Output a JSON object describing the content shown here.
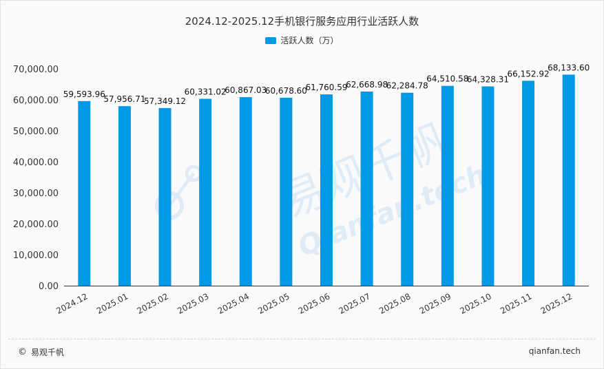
{
  "colors": {
    "bar": "#0099e6",
    "axis": "#333333",
    "tick_text": "#333333",
    "label_text": "#111111",
    "watermark": "#c9e2f5"
  },
  "chart_data": {
    "type": "bar",
    "title": "2024.12-2025.12手机银行服务应用行业活跃人数",
    "legend": {
      "label": "活跃人数（万）",
      "position": "top-center"
    },
    "categories": [
      "2024.12",
      "2025.01",
      "2025.02",
      "2025.03",
      "2025.04",
      "2025.05",
      "2025.06",
      "2025.07",
      "2025.08",
      "2025.09",
      "2025.10",
      "2025.11",
      "2025.12"
    ],
    "series": [
      {
        "name": "活跃人数（万）",
        "values": [
          59593.96,
          57956.71,
          57349.12,
          60331.02,
          60867.03,
          60678.6,
          61760.59,
          62668.98,
          62284.78,
          64510.58,
          64328.31,
          66152.92,
          68133.6
        ]
      }
    ],
    "data_labels": [
      "59,593.96",
      "57,956.71",
      "57,349.12",
      "60,331.02",
      "60,867.03",
      "60,678.60",
      "61,760.59",
      "62,668.98",
      "62,284.78",
      "64,510.58",
      "64,328.31",
      "66,152.92",
      "68,133.60"
    ],
    "yticks": [
      0,
      10000,
      20000,
      30000,
      40000,
      50000,
      60000,
      70000
    ],
    "ytick_labels": [
      "0.00",
      "10,000.00",
      "20,000.00",
      "30,000.00",
      "40,000.00",
      "50,000.00",
      "60,000.00",
      "70,000.00"
    ],
    "ylim": [
      0,
      70000
    ],
    "xlabel": "",
    "ylabel": "",
    "grid": false
  },
  "watermark": {
    "brand": "易观千帆",
    "url": "Qianfan.tech"
  },
  "footer": {
    "copyright_symbol": "©",
    "brand": "易观千帆",
    "site": "qianfan.tech"
  }
}
